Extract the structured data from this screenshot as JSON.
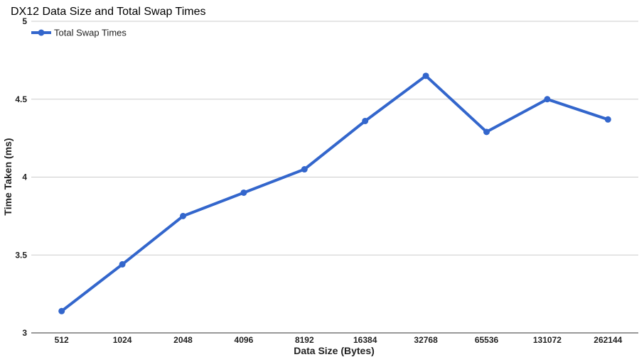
{
  "chart_data": {
    "type": "line",
    "title": "DX12 Data Size and Total Swap Times",
    "xlabel": "Data Size (Bytes)",
    "ylabel": "Time Taken (ms)",
    "categories": [
      "512",
      "1024",
      "2048",
      "4096",
      "8192",
      "16384",
      "32768",
      "65536",
      "131072",
      "262144"
    ],
    "ylim": [
      3,
      5
    ],
    "yticks": [
      "3",
      "3.5",
      "4",
      "4.5",
      "5"
    ],
    "grid": true,
    "legend_position": "top-left",
    "series": [
      {
        "name": "Total Swap Times",
        "color": "#3366cc",
        "values": [
          3.14,
          3.44,
          3.75,
          3.9,
          4.05,
          4.36,
          4.65,
          4.29,
          4.5,
          4.37
        ]
      }
    ]
  }
}
